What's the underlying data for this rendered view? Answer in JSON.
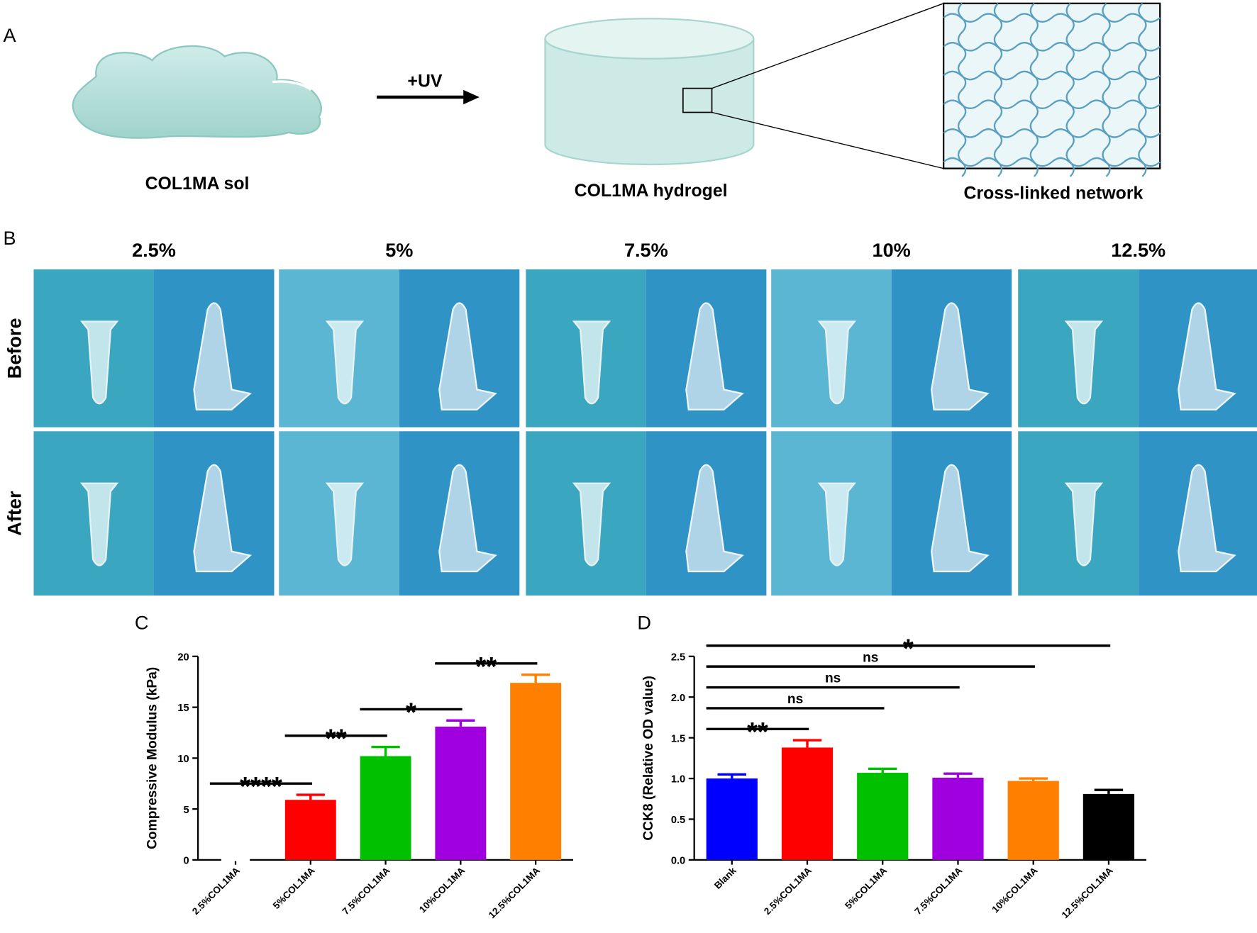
{
  "panel_a": {
    "label": "A",
    "sol": "COL1MA sol",
    "arrow": "+UV",
    "hydrogel": "COL1MA hydrogel",
    "network": "Cross-linked network"
  },
  "panel_b": {
    "label": "B",
    "columns": [
      "2.5%",
      "5%",
      "7.5%",
      "10%",
      "12.5%"
    ],
    "rows": [
      "Before",
      "After"
    ]
  },
  "chart_data": [
    {
      "type": "bar",
      "panel": "C",
      "y_label": "Compressive Modulus (kPa)",
      "categories": [
        "2.5%COL1MA",
        "5%COL1MA",
        "7.5%COL1MA",
        "10%COL1MA",
        "12.5%COL1MA"
      ],
      "values": [
        0,
        5.9,
        10.2,
        13.1,
        17.4
      ],
      "errors": [
        0,
        0.5,
        0.9,
        0.6,
        0.8
      ],
      "colors": [
        "#ffffff",
        "#ff0000",
        "#00c000",
        "#a000e0",
        "#ff8000"
      ],
      "ylim": [
        0,
        20
      ],
      "yticks": [
        0,
        5,
        10,
        15,
        20
      ],
      "annotations": [
        {
          "text": "****",
          "from": "2.5%COL1MA",
          "to": "5%COL1MA"
        },
        {
          "text": "**",
          "from": "5%COL1MA",
          "to": "7.5%COL1MA"
        },
        {
          "text": "*",
          "from": "7.5%COL1MA",
          "to": "10%COL1MA"
        },
        {
          "text": "**",
          "from": "10%COL1MA",
          "to": "12.5%COL1MA"
        }
      ]
    },
    {
      "type": "bar",
      "panel": "D",
      "y_label": "CCK8 (Relative OD value)",
      "categories": [
        "Blank",
        "2.5%COL1MA",
        "5%COL1MA",
        "7.5%COL1MA",
        "10%COL1MA",
        "12.5%COL1MA"
      ],
      "values": [
        1.0,
        1.38,
        1.07,
        1.01,
        0.97,
        0.81
      ],
      "errors": [
        0.05,
        0.09,
        0.05,
        0.05,
        0.03,
        0.05
      ],
      "colors": [
        "#0000ff",
        "#ff0000",
        "#00c000",
        "#a000e0",
        "#ff8000",
        "#000000"
      ],
      "ylim": [
        0,
        2.5
      ],
      "yticks": [
        {
          "value": 0,
          "label": "0.0"
        },
        0.5,
        {
          "value": 1,
          "label": "1.0"
        },
        1.5,
        {
          "value": 2,
          "label": "2.0"
        },
        2.5
      ],
      "annotations": [
        {
          "text": "**",
          "from": "Blank",
          "to": "2.5%COL1MA"
        },
        {
          "text": "ns",
          "from": "Blank",
          "to": "5%COL1MA"
        },
        {
          "text": "ns",
          "from": "Blank",
          "to": "7.5%COL1MA"
        },
        {
          "text": "ns",
          "from": "Blank",
          "to": "10%COL1MA"
        },
        {
          "text": "*",
          "from": "Blank",
          "to": "12.5%COL1MA"
        }
      ]
    }
  ]
}
